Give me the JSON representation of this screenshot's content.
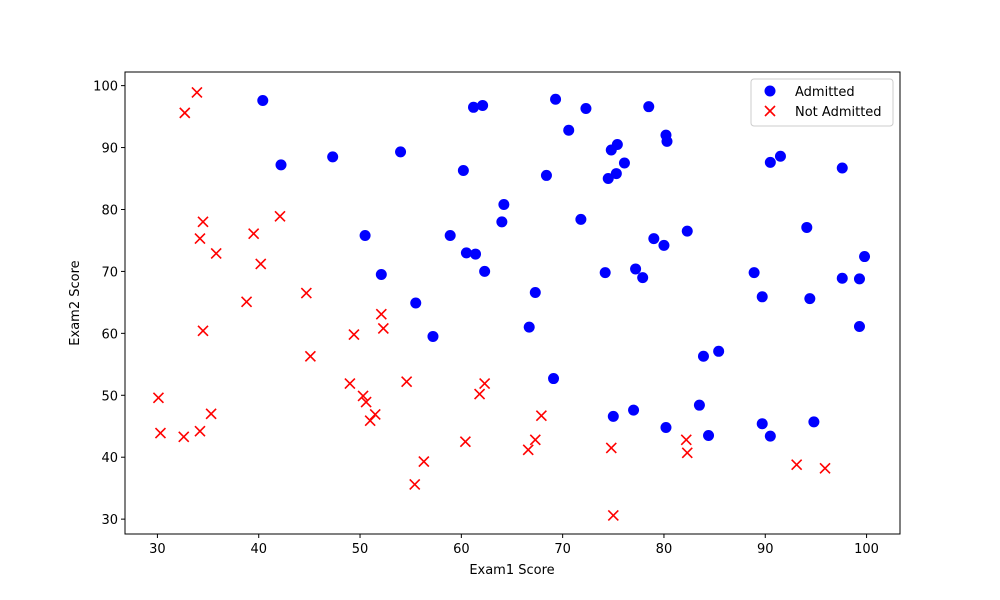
{
  "chart_data": {
    "type": "scatter",
    "xlabel": "Exam1 Score",
    "ylabel": "Exam2 Score",
    "xlim": [
      26.8,
      103.3
    ],
    "ylim": [
      27.6,
      102.2
    ],
    "xticks": [
      30,
      40,
      50,
      60,
      70,
      80,
      90,
      100
    ],
    "yticks": [
      30,
      40,
      50,
      60,
      70,
      80,
      90,
      100
    ],
    "grid": false,
    "legend_position": "top-right",
    "series": [
      {
        "name": "Admitted",
        "marker": "circle",
        "color": "#0000ff",
        "points": [
          [
            40.4,
            97.6
          ],
          [
            42.2,
            87.2
          ],
          [
            47.3,
            88.5
          ],
          [
            54.0,
            89.3
          ],
          [
            61.2,
            96.5
          ],
          [
            62.1,
            96.8
          ],
          [
            69.3,
            97.8
          ],
          [
            72.3,
            96.3
          ],
          [
            78.5,
            96.6
          ],
          [
            70.6,
            92.8
          ],
          [
            80.2,
            92.0
          ],
          [
            80.3,
            91.0
          ],
          [
            74.8,
            89.6
          ],
          [
            75.4,
            90.5
          ],
          [
            76.1,
            87.5
          ],
          [
            74.5,
            85.0
          ],
          [
            75.3,
            85.8
          ],
          [
            68.4,
            85.5
          ],
          [
            90.5,
            87.6
          ],
          [
            91.5,
            88.6
          ],
          [
            97.6,
            86.7
          ],
          [
            60.2,
            86.3
          ],
          [
            64.2,
            80.8
          ],
          [
            64.0,
            78.0
          ],
          [
            71.8,
            78.4
          ],
          [
            94.1,
            77.1
          ],
          [
            50.5,
            75.8
          ],
          [
            58.9,
            75.8
          ],
          [
            60.5,
            73.0
          ],
          [
            61.4,
            72.8
          ],
          [
            79.0,
            75.3
          ],
          [
            80.0,
            74.2
          ],
          [
            82.3,
            76.5
          ],
          [
            62.3,
            70.0
          ],
          [
            52.1,
            69.5
          ],
          [
            74.2,
            69.8
          ],
          [
            77.2,
            70.4
          ],
          [
            77.9,
            69.0
          ],
          [
            88.9,
            69.8
          ],
          [
            99.8,
            72.4
          ],
          [
            97.6,
            68.9
          ],
          [
            99.3,
            68.8
          ],
          [
            55.5,
            64.9
          ],
          [
            67.3,
            66.6
          ],
          [
            89.7,
            65.9
          ],
          [
            94.4,
            65.6
          ],
          [
            57.2,
            59.5
          ],
          [
            66.7,
            61.0
          ],
          [
            99.3,
            61.1
          ],
          [
            83.9,
            56.3
          ],
          [
            85.4,
            57.1
          ],
          [
            69.1,
            52.7
          ],
          [
            83.5,
            48.4
          ],
          [
            77.0,
            47.6
          ],
          [
            75.0,
            46.6
          ],
          [
            89.7,
            45.4
          ],
          [
            94.8,
            45.7
          ],
          [
            80.2,
            44.8
          ],
          [
            84.4,
            43.5
          ],
          [
            90.5,
            43.4
          ]
        ]
      },
      {
        "name": "Not Admitted",
        "marker": "x",
        "color": "#ff0000",
        "points": [
          [
            33.9,
            98.9
          ],
          [
            32.7,
            95.6
          ],
          [
            34.5,
            78.0
          ],
          [
            34.2,
            75.3
          ],
          [
            42.1,
            78.9
          ],
          [
            39.5,
            76.1
          ],
          [
            35.8,
            72.9
          ],
          [
            40.2,
            71.2
          ],
          [
            38.8,
            65.1
          ],
          [
            44.7,
            66.5
          ],
          [
            34.5,
            60.4
          ],
          [
            49.4,
            59.8
          ],
          [
            52.1,
            63.1
          ],
          [
            52.3,
            60.8
          ],
          [
            45.1,
            56.3
          ],
          [
            30.1,
            49.6
          ],
          [
            30.3,
            43.9
          ],
          [
            32.6,
            43.3
          ],
          [
            34.2,
            44.2
          ],
          [
            35.3,
            47.0
          ],
          [
            49.0,
            51.9
          ],
          [
            50.3,
            49.9
          ],
          [
            50.6,
            48.9
          ],
          [
            51.5,
            46.9
          ],
          [
            51.0,
            45.9
          ],
          [
            54.6,
            52.2
          ],
          [
            61.8,
            50.2
          ],
          [
            62.3,
            51.9
          ],
          [
            67.9,
            46.7
          ],
          [
            67.3,
            42.8
          ],
          [
            66.6,
            41.2
          ],
          [
            60.4,
            42.5
          ],
          [
            56.3,
            39.3
          ],
          [
            55.4,
            35.6
          ],
          [
            74.8,
            41.5
          ],
          [
            75.0,
            30.6
          ],
          [
            82.2,
            42.8
          ],
          [
            82.3,
            40.7
          ],
          [
            93.1,
            38.8
          ],
          [
            95.9,
            38.2
          ]
        ]
      }
    ]
  }
}
